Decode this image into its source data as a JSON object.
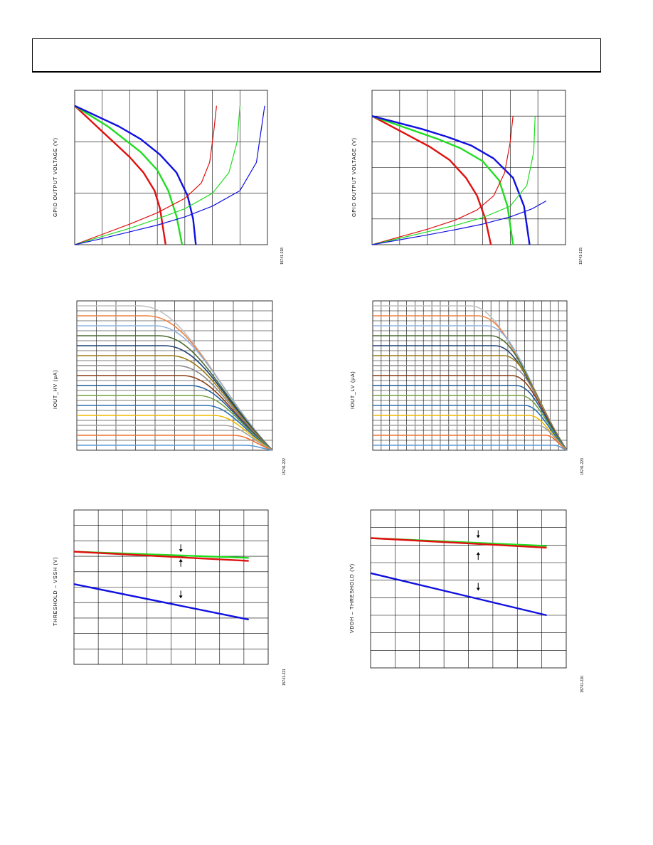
{
  "chart_data": [
    {
      "type": "line",
      "ylabel": "GPIO OUTPUT VOLTAGE (V)",
      "figure_id": "15741-218",
      "grid": true,
      "xlim": [
        0,
        7
      ],
      "ylim": [
        0,
        3
      ],
      "x_divisions": 7,
      "y_divisions": 3,
      "series": [
        {
          "color": "#e01010",
          "values": [
            [
              0,
              2.7
            ],
            [
              0.5,
              2.45
            ],
            [
              1,
              2.2
            ],
            [
              1.5,
              1.95
            ],
            [
              2,
              1.7
            ],
            [
              2.5,
              1.4
            ],
            [
              2.9,
              1.05
            ],
            [
              3.1,
              0.7
            ],
            [
              3.2,
              0.35
            ],
            [
              3.3,
              0
            ]
          ]
        },
        {
          "color": "#20dd20",
          "values": [
            [
              0,
              2.7
            ],
            [
              0.6,
              2.5
            ],
            [
              1.2,
              2.3
            ],
            [
              1.8,
              2.05
            ],
            [
              2.4,
              1.8
            ],
            [
              3,
              1.45
            ],
            [
              3.4,
              1.05
            ],
            [
              3.7,
              0.55
            ],
            [
              3.9,
              0
            ]
          ]
        },
        {
          "color": "#1010e0",
          "values": [
            [
              0,
              2.7
            ],
            [
              0.8,
              2.5
            ],
            [
              1.6,
              2.3
            ],
            [
              2.4,
              2.05
            ],
            [
              3.1,
              1.75
            ],
            [
              3.7,
              1.4
            ],
            [
              4.1,
              0.95
            ],
            [
              4.3,
              0.5
            ],
            [
              4.4,
              0
            ]
          ]
        },
        {
          "color": "#e01010",
          "values": [
            [
              0,
              0
            ],
            [
              1,
              0.2
            ],
            [
              2,
              0.4
            ],
            [
              3,
              0.62
            ],
            [
              4,
              0.9
            ],
            [
              4.6,
              1.2
            ],
            [
              4.9,
              1.6
            ],
            [
              5.05,
              2.2
            ],
            [
              5.15,
              2.7
            ]
          ]
        },
        {
          "color": "#20dd20",
          "values": [
            [
              0,
              0
            ],
            [
              1,
              0.16
            ],
            [
              2,
              0.32
            ],
            [
              3,
              0.5
            ],
            [
              4,
              0.7
            ],
            [
              5,
              1.0
            ],
            [
              5.6,
              1.4
            ],
            [
              5.9,
              2.0
            ],
            [
              6.0,
              2.7
            ]
          ]
        },
        {
          "color": "#1010e0",
          "values": [
            [
              0,
              0
            ],
            [
              1,
              0.12
            ],
            [
              2,
              0.25
            ],
            [
              3,
              0.38
            ],
            [
              4,
              0.54
            ],
            [
              5,
              0.75
            ],
            [
              6,
              1.05
            ],
            [
              6.6,
              1.6
            ],
            [
              6.9,
              2.7
            ]
          ]
        }
      ]
    },
    {
      "type": "line",
      "ylabel": "GPIO OUTPUT VOLTAGE (V)",
      "figure_id": "15741-215",
      "grid": true,
      "xlim": [
        0,
        7
      ],
      "ylim": [
        0,
        6
      ],
      "x_divisions": 7,
      "y_divisions": 6,
      "series": [
        {
          "color": "#e01010",
          "values": [
            [
              0,
              5.0
            ],
            [
              0.7,
              4.6
            ],
            [
              1.4,
              4.2
            ],
            [
              2.1,
              3.8
            ],
            [
              2.8,
              3.3
            ],
            [
              3.4,
              2.6
            ],
            [
              3.8,
              1.9
            ],
            [
              4.1,
              1.0
            ],
            [
              4.3,
              0
            ]
          ]
        },
        {
          "color": "#20dd20",
          "values": [
            [
              0,
              5.0
            ],
            [
              0.8,
              4.7
            ],
            [
              1.6,
              4.4
            ],
            [
              2.4,
              4.1
            ],
            [
              3.2,
              3.75
            ],
            [
              4,
              3.25
            ],
            [
              4.6,
              2.5
            ],
            [
              4.9,
              1.5
            ],
            [
              5.1,
              0
            ]
          ]
        },
        {
          "color": "#1010e0",
          "values": [
            [
              0,
              5.0
            ],
            [
              0.9,
              4.75
            ],
            [
              1.8,
              4.5
            ],
            [
              2.7,
              4.2
            ],
            [
              3.6,
              3.85
            ],
            [
              4.4,
              3.35
            ],
            [
              5.1,
              2.6
            ],
            [
              5.5,
              1.5
            ],
            [
              5.7,
              0
            ]
          ]
        },
        {
          "color": "#e01010",
          "values": [
            [
              0,
              0
            ],
            [
              1,
              0.3
            ],
            [
              2,
              0.6
            ],
            [
              3,
              0.95
            ],
            [
              3.8,
              1.35
            ],
            [
              4.4,
              1.9
            ],
            [
              4.8,
              2.8
            ],
            [
              5.0,
              4.0
            ],
            [
              5.1,
              5.0
            ]
          ]
        },
        {
          "color": "#20dd20",
          "values": [
            [
              0,
              0
            ],
            [
              1,
              0.25
            ],
            [
              2,
              0.5
            ],
            [
              3,
              0.75
            ],
            [
              4,
              1.05
            ],
            [
              5,
              1.5
            ],
            [
              5.6,
              2.3
            ],
            [
              5.85,
              3.6
            ],
            [
              5.9,
              5.0
            ]
          ]
        },
        {
          "color": "#1010e0",
          "values": [
            [
              0,
              0
            ],
            [
              1,
              0.19
            ],
            [
              2,
              0.38
            ],
            [
              3,
              0.58
            ],
            [
              4,
              0.8
            ],
            [
              5,
              1.08
            ],
            [
              5.8,
              1.4
            ],
            [
              6.3,
              1.7
            ]
          ]
        }
      ]
    },
    {
      "type": "line",
      "ylabel": "IOUT_HV (μA)",
      "figure_id": "15741-222",
      "grid": true,
      "xlim": [
        0,
        10
      ],
      "ylim": [
        0,
        15
      ],
      "x_divisions": 10,
      "y_divisions": 15,
      "series_levels": [
        14.5,
        13.5,
        12.5,
        11.5,
        10.5,
        9.5,
        8.5,
        7.5,
        6.5,
        5.5,
        4.5,
        3.5,
        2.5,
        1.5,
        0.5
      ],
      "series_colors": [
        "#c0c0c0",
        "#f08040",
        "#8fb4e0",
        "#4a6a30",
        "#1f3f70",
        "#9a7a10",
        "#8a8a8a",
        "#8a3a10",
        "#1f5a9a",
        "#70a040",
        "#2a70b0",
        "#f0b800",
        "#a0a0a0",
        "#f07030",
        "#5b9bd5"
      ],
      "knee_start_x": [
        3.2,
        3.6,
        4.0,
        4.2,
        4.5,
        4.8,
        5.1,
        5.4,
        5.8,
        6.2,
        6.6,
        7.0,
        7.5,
        8.0,
        8.6
      ],
      "end_point": [
        10,
        0
      ]
    },
    {
      "type": "line",
      "ylabel": "IOUT_LV (μA)",
      "figure_id": "15741-223",
      "grid": true,
      "xlim": [
        0,
        23
      ],
      "ylim": [
        0,
        15
      ],
      "x_divisions": 23,
      "y_divisions": 15,
      "series_levels": [
        14.5,
        13.5,
        12.5,
        11.5,
        10.5,
        9.5,
        8.5,
        7.5,
        6.5,
        5.5,
        4.5,
        3.5,
        2.5,
        1.5,
        0.5
      ],
      "series_colors": [
        "#c0c0c0",
        "#f08040",
        "#8fb4e0",
        "#4a6a30",
        "#1f3f70",
        "#9a7a10",
        "#8a8a8a",
        "#8a3a10",
        "#1f5a9a",
        "#70a040",
        "#2a70b0",
        "#f0b800",
        "#a0a0a0",
        "#f07030",
        "#5b9bd5"
      ],
      "knee_start_x": [
        11.5,
        12.5,
        13.5,
        14,
        14.5,
        15.5,
        16,
        16.5,
        17,
        17.5,
        18,
        18.5,
        19.5,
        20.5,
        21.5
      ],
      "end_point": [
        23,
        0
      ]
    },
    {
      "type": "line",
      "ylabel": "THRESHOLD – VSSH (V)",
      "figure_id": "15741-221",
      "grid": true,
      "xlim": [
        0,
        8
      ],
      "ylim": [
        0,
        10
      ],
      "x_divisions": 8,
      "y_divisions": 10,
      "series": [
        {
          "color": "#20dd20",
          "values": [
            [
              0,
              7.3
            ],
            [
              7.2,
              6.9
            ]
          ]
        },
        {
          "color": "#e01010",
          "values": [
            [
              0,
              7.3
            ],
            [
              7.2,
              6.7
            ]
          ]
        },
        {
          "color": "#1010e0",
          "values": [
            [
              0,
              5.2
            ],
            [
              7.2,
              2.9
            ]
          ]
        }
      ],
      "arrows": [
        {
          "x": 4.4,
          "y": 7.5,
          "dir": "down"
        },
        {
          "x": 4.4,
          "y": 6.6,
          "dir": "up"
        },
        {
          "x": 4.4,
          "y": 4.5,
          "dir": "down"
        }
      ]
    },
    {
      "type": "line",
      "ylabel": "VDDH – THRESHOLD (V)",
      "figure_id": "15741-220",
      "grid": true,
      "xlim": [
        0,
        8
      ],
      "ylim": [
        0,
        9
      ],
      "x_divisions": 8,
      "y_divisions": 9,
      "series": [
        {
          "color": "#20dd20",
          "values": [
            [
              0,
              7.4
            ],
            [
              7.2,
              6.95
            ]
          ]
        },
        {
          "color": "#e01010",
          "values": [
            [
              0,
              7.4
            ],
            [
              7.2,
              6.85
            ]
          ]
        },
        {
          "color": "#1010e0",
          "values": [
            [
              0,
              5.4
            ],
            [
              7.2,
              3.0
            ]
          ]
        }
      ],
      "arrows": [
        {
          "x": 4.4,
          "y": 7.6,
          "dir": "down"
        },
        {
          "x": 4.4,
          "y": 6.4,
          "dir": "up"
        },
        {
          "x": 4.4,
          "y": 4.6,
          "dir": "down"
        }
      ]
    }
  ]
}
